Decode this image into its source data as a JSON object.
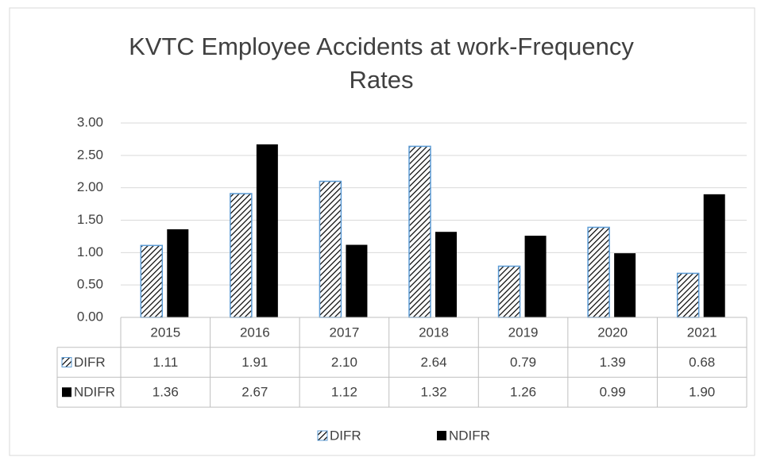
{
  "chart_data": {
    "type": "bar",
    "title": "KVTC Employee Accidents at work-Frequency Rates",
    "categories": [
      "2015",
      "2016",
      "2017",
      "2018",
      "2019",
      "2020",
      "2021"
    ],
    "series": [
      {
        "name": "DIFR",
        "color": "#000000",
        "pattern": "hatch",
        "values": [
          1.11,
          1.91,
          2.1,
          2.64,
          0.79,
          1.39,
          0.68
        ],
        "value_labels": [
          "1.11",
          "1.91",
          "2.10",
          "2.64",
          "0.79",
          "1.39",
          "0.68"
        ]
      },
      {
        "name": "NDIFR",
        "color": "#000000",
        "values": [
          1.36,
          2.67,
          1.12,
          1.32,
          1.26,
          0.99,
          1.9
        ],
        "value_labels": [
          "1.36",
          "2.67",
          "1.12",
          "1.32",
          "1.26",
          "0.99",
          "1.90"
        ]
      }
    ],
    "ylim": [
      0,
      3
    ],
    "yticks": [
      {
        "value": 0,
        "label": "0.00"
      },
      {
        "value": 0.5,
        "label": "0.50"
      },
      {
        "value": 1,
        "label": "1.00"
      },
      {
        "value": 1.5,
        "label": "1.50"
      },
      {
        "value": 2,
        "label": "2.00"
      },
      {
        "value": 2.5,
        "label": "2.50"
      },
      {
        "value": 3,
        "label": "3.00"
      }
    ],
    "grid": true,
    "legend": "bottom"
  }
}
